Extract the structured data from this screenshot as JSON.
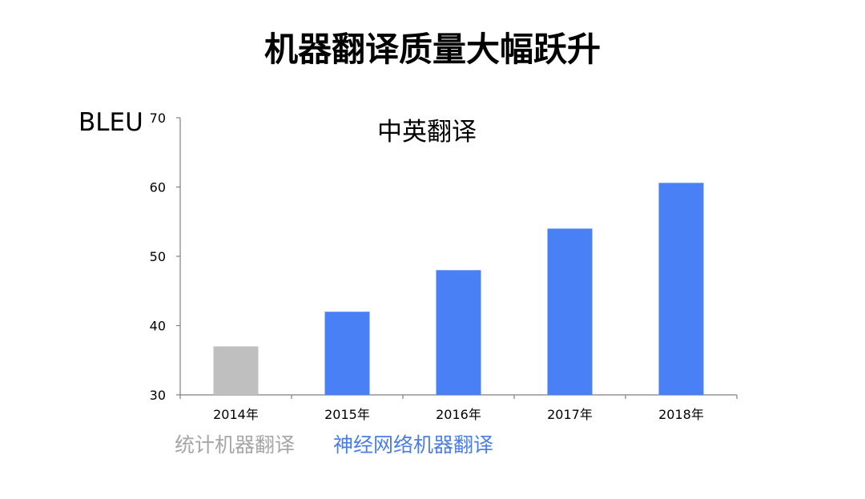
{
  "page_title": "机器翻译质量大幅跃升",
  "chart_data": {
    "type": "bar",
    "title": "中英翻译",
    "ylabel": "BLEU",
    "xlabel": "",
    "categories": [
      "2014年",
      "2015年",
      "2016年",
      "2017年",
      "2018年"
    ],
    "values": [
      37,
      42,
      48,
      54,
      60.6
    ],
    "bar_groups": [
      "统计机器翻译",
      "神经网络机器翻译",
      "神经网络机器翻译",
      "神经网络机器翻译",
      "神经网络机器翻译"
    ],
    "ylim": [
      30,
      70
    ],
    "yticks": [
      30,
      40,
      50,
      60,
      70
    ],
    "grid": false,
    "colors": {
      "统计机器翻译": "#bfbfbf",
      "神经网络机器翻译": "#4a80f5"
    }
  },
  "legend": {
    "items": [
      {
        "label": "统计机器翻译",
        "color": "#a6a6a6"
      },
      {
        "label": "神经网络机器翻译",
        "color": "#4a7ee6"
      }
    ]
  }
}
